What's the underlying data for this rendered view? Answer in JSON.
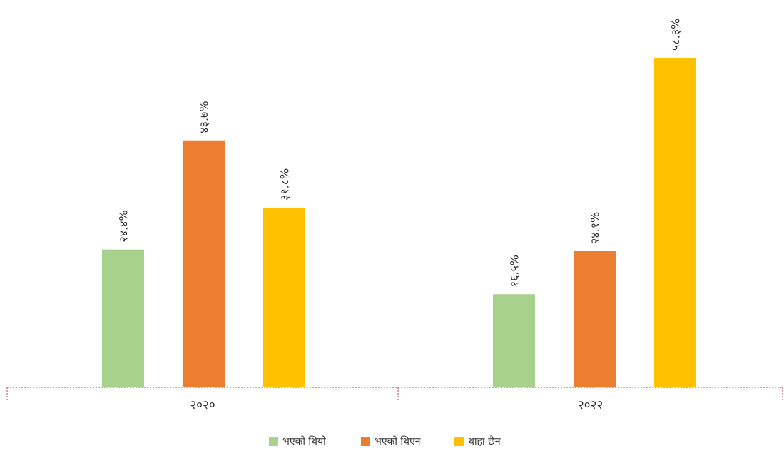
{
  "chart_data": {
    "type": "bar",
    "categories": [
      "२०२०",
      "२०२२"
    ],
    "series": [
      {
        "name": "भएको थियो",
        "color": "#A9D18E",
        "values": [
          24.4,
          16.5
        ],
        "labels": [
          "२४.४%",
          "१६.५%"
        ]
      },
      {
        "name": "भएको थिएन",
        "color": "#ED7D31",
        "values": [
          43.7,
          24.1
        ],
        "labels": [
          "४३.७%",
          "२४.१%"
        ]
      },
      {
        "name": "थाहा छैन",
        "color": "#FFC000",
        "values": [
          31.8,
          58.3
        ],
        "labels": [
          "३१.८%",
          "५८.३%"
        ]
      }
    ],
    "ylim": [
      0,
      60
    ],
    "grid": false,
    "legend_position": "bottom",
    "axis_color": "#B23C5A"
  }
}
